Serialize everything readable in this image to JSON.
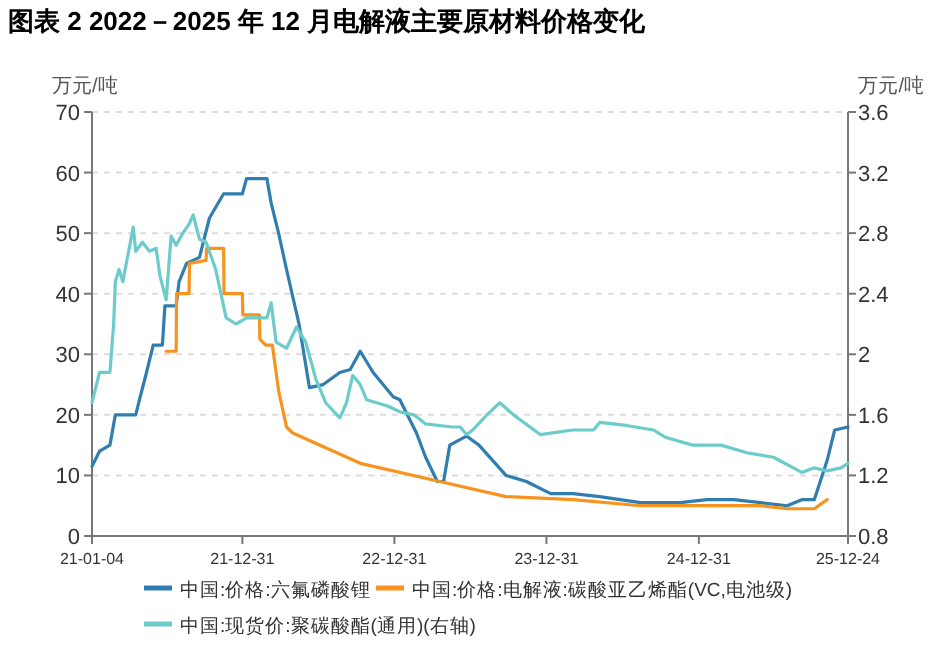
{
  "chart_data": {
    "type": "line",
    "title": "图表 2    2022－2025 年 12 月电解液主要原材料价格变化",
    "ylabel": "万元/吨",
    "y2label": "万元/吨",
    "xlim": [
      "2021-01-04",
      "2025-12-24"
    ],
    "xticks": [
      {
        "value": "2021-01-04",
        "label": "21-01-04"
      },
      {
        "value": "2021-12-31",
        "label": "21-12-31"
      },
      {
        "value": "2022-12-31",
        "label": "22-12-31"
      },
      {
        "value": "2023-12-31",
        "label": "23-12-31"
      },
      {
        "value": "2024-12-31",
        "label": "24-12-31"
      },
      {
        "value": "2025-12-24",
        "label": "25-12-24"
      }
    ],
    "ylim": [
      0,
      70
    ],
    "yticks": [
      0,
      10,
      20,
      30,
      40,
      50,
      60,
      70
    ],
    "y2lim": [
      0.8,
      3.6
    ],
    "y2ticks": [
      0.8,
      1.2,
      1.6,
      2,
      2.4,
      2.8,
      3.2,
      3.6
    ],
    "grid": "y",
    "legend": "bottom",
    "line_style": "solid",
    "series": [
      {
        "name": "中国:价格:六氟磷酸锂",
        "color": "#2f7eaf",
        "x": [
          "2021-01-04",
          "2021-01-22",
          "2021-02-16",
          "2021-03-01",
          "2021-04-19",
          "2021-04-28",
          "2021-05-13",
          "2021-05-31",
          "2021-06-22",
          "2021-06-28",
          "2021-07-25",
          "2021-08-01",
          "2021-08-19",
          "2021-09-19",
          "2021-10-13",
          "2021-11-16",
          "2021-12-31",
          "2022-01-10",
          "2022-02-28",
          "2022-03-10",
          "2022-03-28",
          "2022-04-16",
          "2022-05-16",
          "2022-06-10",
          "2022-07-13",
          "2022-08-22",
          "2022-09-16",
          "2022-10-10",
          "2022-11-10",
          "2022-12-28",
          "2023-01-13",
          "2023-02-22",
          "2023-03-16",
          "2023-04-13",
          "2023-04-28",
          "2023-05-13",
          "2023-06-22",
          "2023-07-22",
          "2023-09-25",
          "2023-11-13",
          "2024-01-10",
          "2024-03-04",
          "2024-05-07",
          "2024-08-13",
          "2024-11-16",
          "2025-01-19",
          "2025-03-25",
          "2025-05-28",
          "2025-07-31",
          "2025-09-04",
          "2025-10-04",
          "2025-11-04",
          "2025-11-22",
          "2025-12-24"
        ],
        "values": [
          11.5,
          14,
          15,
          20,
          20,
          22.5,
          26.5,
          31.5,
          31.5,
          38,
          38,
          42,
          45,
          46,
          52.5,
          56.5,
          56.5,
          59,
          59,
          55,
          50,
          44,
          35,
          24.5,
          25,
          27,
          27.5,
          30.5,
          27,
          23,
          22.5,
          17,
          13,
          9,
          9,
          15,
          16.5,
          15,
          10,
          9,
          7,
          7,
          6.5,
          5.5,
          5.5,
          6,
          6,
          5.5,
          5,
          6,
          6,
          12.5,
          17.5,
          18
        ]
      },
      {
        "name": "中国:价格:电解液:碳酸亚乙烯酯(VC,电池级)",
        "color": "#f7931e",
        "x": [
          "2021-07-01",
          "2021-07-25",
          "2021-07-26",
          "2021-08-25",
          "2021-08-26",
          "2021-10-05",
          "2021-10-06",
          "2021-11-16",
          "2021-11-17",
          "2021-12-31",
          "2022-01-01",
          "2022-02-10",
          "2022-02-11",
          "2022-02-25",
          "2022-03-13",
          "2022-03-28",
          "2022-04-16",
          "2022-05-01",
          "2022-10-10",
          "2023-04-19",
          "2023-09-25",
          "2024-03-04",
          "2024-08-13",
          "2025-01-19",
          "2025-05-28",
          "2025-07-31",
          "2025-10-04",
          "2025-11-04"
        ],
        "values": [
          30.5,
          30.5,
          40,
          40,
          45,
          45.5,
          47.5,
          47.5,
          40,
          40,
          36.5,
          36.5,
          32.5,
          31.5,
          31.5,
          24,
          18,
          17,
          12,
          9,
          6.5,
          6,
          5,
          5,
          5,
          4.5,
          4.5,
          6
        ]
      },
      {
        "name": "中国:现货价:聚碳酸酯(通用)(右轴)",
        "color": "#6ccbcb",
        "axis": "y2",
        "x": [
          "2021-01-04",
          "2021-01-22",
          "2021-02-16",
          "2021-02-25",
          "2021-03-01",
          "2021-03-10",
          "2021-03-19",
          "2021-04-13",
          "2021-04-19",
          "2021-05-05",
          "2021-05-22",
          "2021-06-07",
          "2021-06-16",
          "2021-07-01",
          "2021-07-13",
          "2021-07-25",
          "2021-08-10",
          "2021-08-25",
          "2021-09-04",
          "2021-09-19",
          "2021-10-05",
          "2021-10-28",
          "2021-11-22",
          "2021-12-16",
          "2022-01-10",
          "2022-02-28",
          "2022-03-10",
          "2022-03-22",
          "2022-04-16",
          "2022-05-10",
          "2022-06-01",
          "2022-06-25",
          "2022-07-19",
          "2022-08-22",
          "2022-09-07",
          "2022-09-22",
          "2022-10-10",
          "2022-10-25",
          "2022-12-13",
          "2023-01-13",
          "2023-02-16",
          "2023-03-16",
          "2023-05-19",
          "2023-06-07",
          "2023-06-22",
          "2023-07-07",
          "2023-08-10",
          "2023-09-10",
          "2023-10-13",
          "2023-12-16",
          "2024-03-04",
          "2024-04-22",
          "2024-05-07",
          "2024-07-10",
          "2024-09-13",
          "2024-10-13",
          "2024-12-16",
          "2025-02-22",
          "2025-04-25",
          "2025-06-28",
          "2025-09-04",
          "2025-10-04",
          "2025-11-04",
          "2025-12-07",
          "2025-12-24"
        ],
        "values": [
          1.68,
          1.88,
          1.88,
          2.2,
          2.48,
          2.56,
          2.48,
          2.84,
          2.68,
          2.74,
          2.68,
          2.7,
          2.52,
          2.36,
          2.78,
          2.72,
          2.8,
          2.86,
          2.92,
          2.76,
          2.74,
          2.56,
          2.24,
          2.2,
          2.24,
          2.24,
          2.34,
          2.08,
          2.04,
          2.18,
          2.08,
          1.84,
          1.68,
          1.58,
          1.68,
          1.86,
          1.8,
          1.7,
          1.66,
          1.62,
          1.6,
          1.54,
          1.52,
          1.52,
          1.47,
          1.5,
          1.6,
          1.68,
          1.6,
          1.47,
          1.5,
          1.5,
          1.55,
          1.53,
          1.5,
          1.45,
          1.4,
          1.4,
          1.35,
          1.32,
          1.22,
          1.25,
          1.23,
          1.25,
          1.28
        ]
      }
    ]
  }
}
